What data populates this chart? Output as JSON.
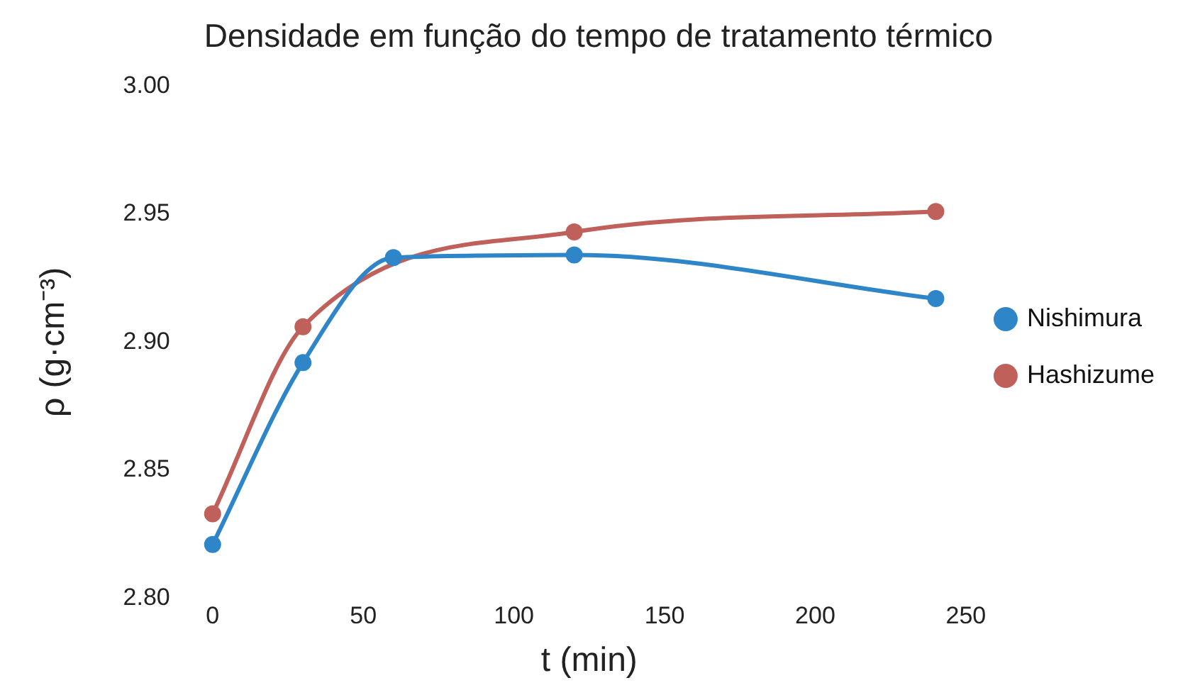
{
  "chart_data": {
    "type": "line",
    "title": "Densidade em função do tempo de tratamento térmico",
    "xlabel": "t (min)",
    "ylabel": "ρ (g·cm⁻³)",
    "xlim": [
      0,
      250
    ],
    "xticks": [
      0,
      50,
      100,
      150,
      200,
      250
    ],
    "ylim": [
      2.8,
      3.0
    ],
    "yticks": [
      {
        "value": 2.8,
        "label": "2.80"
      },
      {
        "value": 2.85,
        "label": "2.85"
      },
      {
        "value": 2.9,
        "label": "2.90"
      },
      {
        "value": 2.95,
        "label": "2.95"
      },
      {
        "value": 3.0,
        "label": "3.00"
      }
    ],
    "grid": false,
    "legend": "right",
    "marker": "circle",
    "series": [
      {
        "name": "Nishimura",
        "color": "#2e86c8",
        "x": [
          0,
          30,
          60,
          120,
          240
        ],
        "values": [
          2.821,
          2.892,
          2.933,
          2.934,
          2.917
        ]
      },
      {
        "name": "Hashizume",
        "color": "#c0605a",
        "x": [
          0,
          30,
          120,
          240
        ],
        "values": [
          2.833,
          2.906,
          2.943,
          2.951
        ]
      }
    ]
  }
}
